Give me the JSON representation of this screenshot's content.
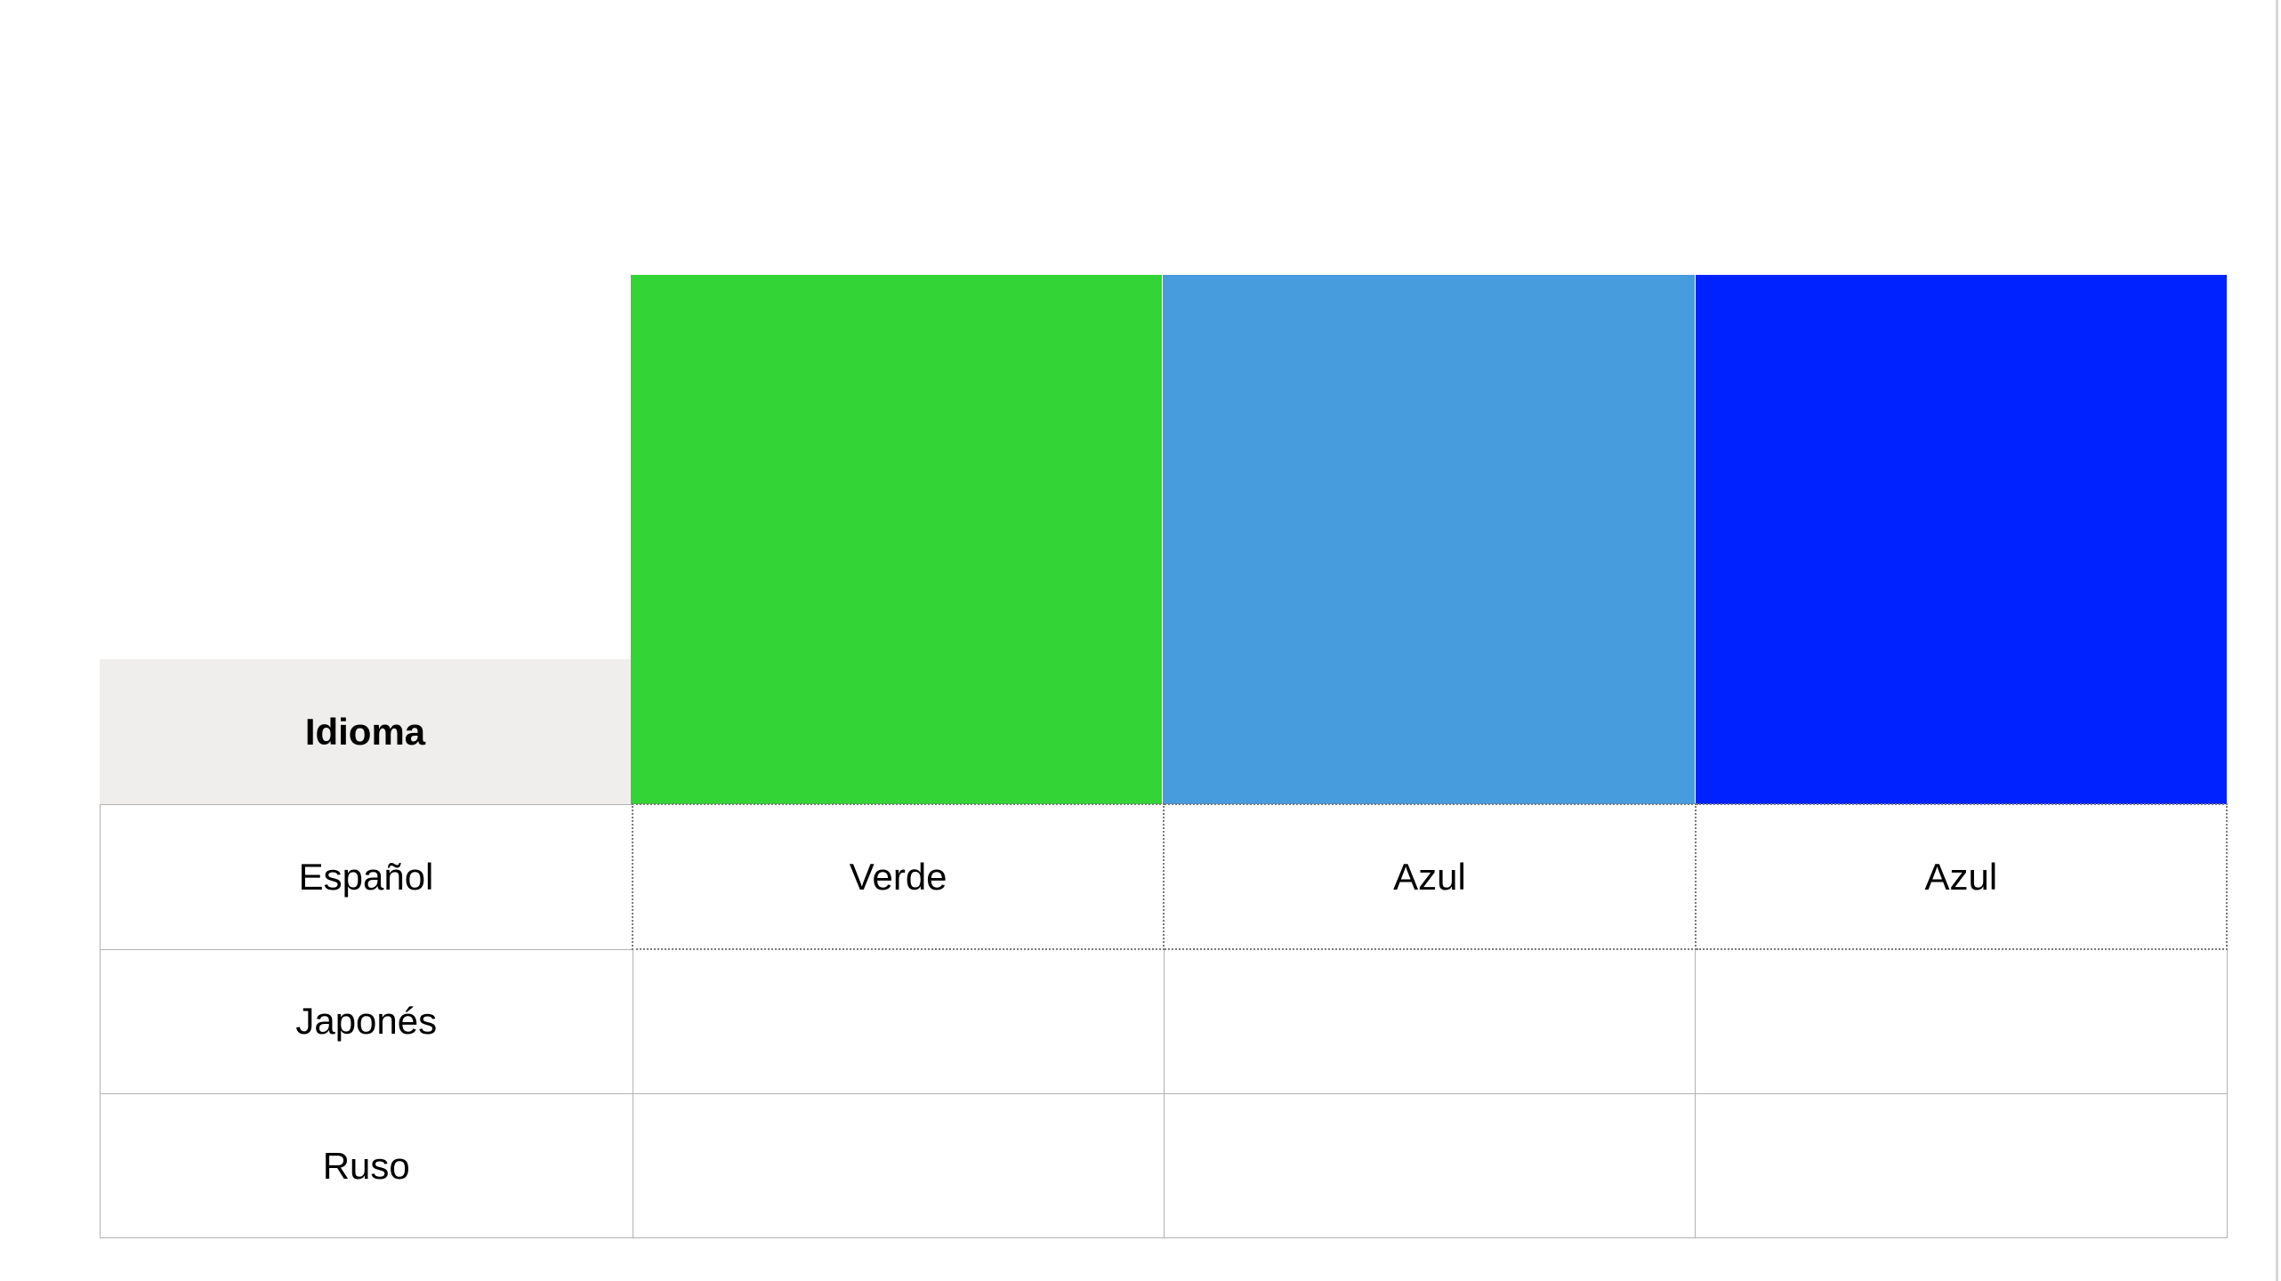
{
  "colors": {
    "green": "#33d435",
    "light_blue": "#469cdd",
    "blue": "#0022ff",
    "header_bg": "#efeeec"
  },
  "table": {
    "header_label": "Idioma",
    "swatches": [
      "#33d435",
      "#469cdd",
      "#0022ff"
    ],
    "rows": [
      {
        "language": "Español",
        "cells": [
          "Verde",
          "Azul",
          "Azul"
        ]
      },
      {
        "language": "Japonés",
        "cells": [
          "",
          "",
          ""
        ]
      },
      {
        "language": "Ruso",
        "cells": [
          "",
          "",
          ""
        ]
      }
    ]
  }
}
